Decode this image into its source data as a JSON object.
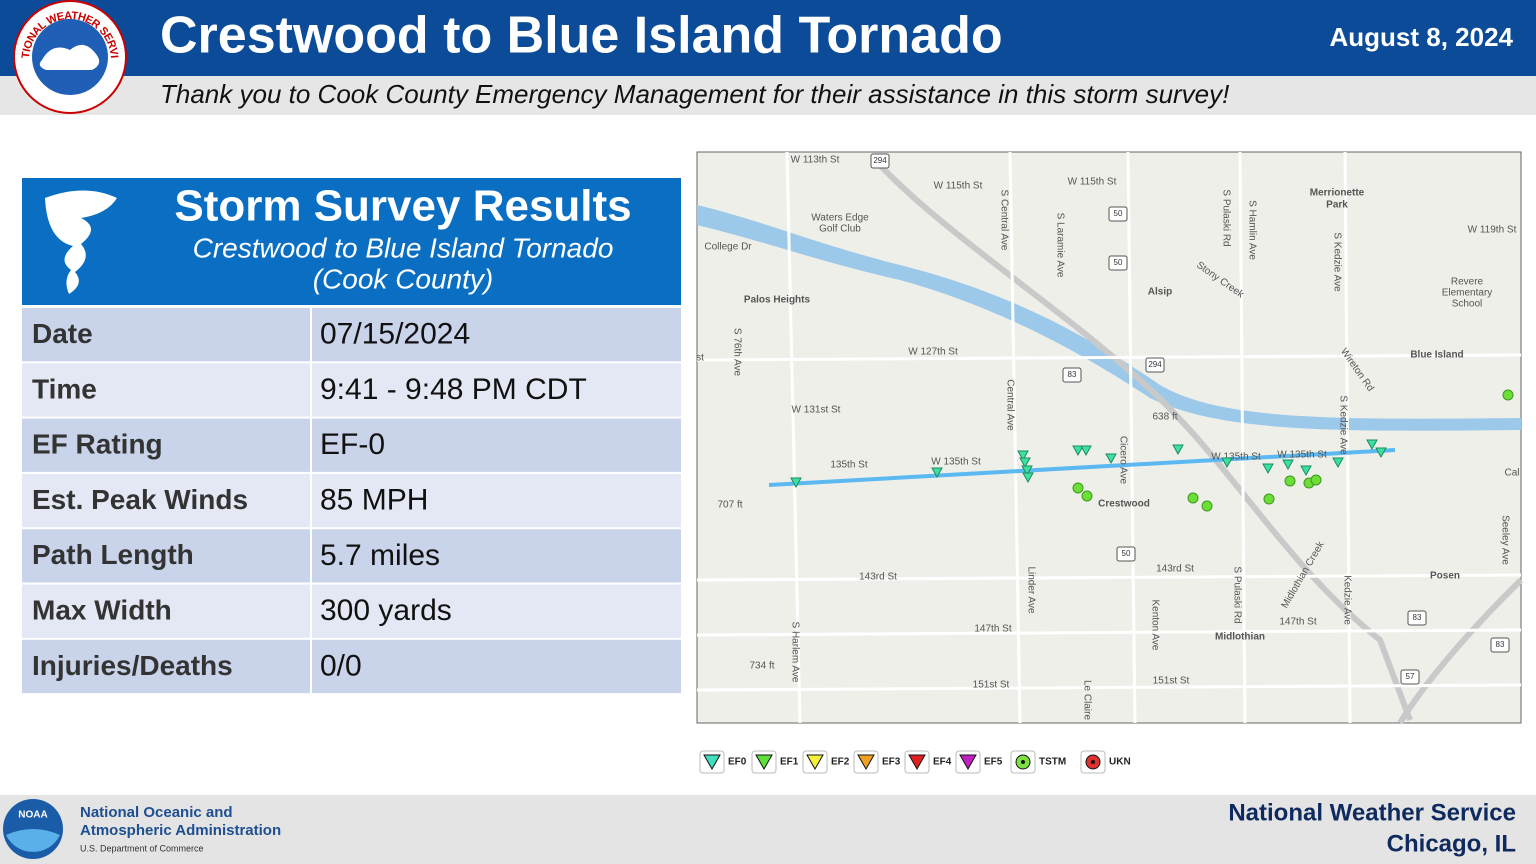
{
  "header": {
    "title": "Crestwood to Blue Island Tornado",
    "date": "August 8, 2024",
    "subtitle": "Thank you to Cook County Emergency Management for their assistance in this storm survey!",
    "logo_ring": "NATIONAL WEATHER SERVICE"
  },
  "panel": {
    "title": "Storm Survey Results",
    "subtitle_1": "Crestwood to Blue Island Tornado",
    "subtitle_2": "(Cook County)"
  },
  "table": {
    "rows": [
      [
        "Date",
        "07/15/2024"
      ],
      [
        "Time",
        "9:41 - 9:48 PM CDT"
      ],
      [
        "EF Rating",
        "EF-0"
      ],
      [
        "Est. Peak Winds",
        "85 MPH"
      ],
      [
        "Path Length",
        "5.7 miles"
      ],
      [
        "Max Width",
        "300 yards"
      ],
      [
        "Injuries/Deaths",
        "0/0"
      ]
    ]
  },
  "map": {
    "labels": [
      "W 113th St",
      "W 115th St",
      "W 115th St",
      "S Central Ave",
      "S Laramie Ave",
      "S Pulaski Rd",
      "S Hamlin Ave",
      "Merrionette",
      "Park",
      "W 119th St",
      "Waters Edge",
      "Golf Club",
      "College Dr",
      "S Kedzie Ave",
      "Stony Creek",
      "Palos Heights",
      "Alsip",
      "Revere",
      "Elementary",
      "School",
      "S 76th Ave",
      "W 127th St",
      "Blue Island",
      "Central Ave",
      "Wireton Rd",
      "W 131st St",
      "638 ft",
      "S Kedzie Ave",
      "135th St",
      "W 135th St",
      "W 135th St",
      "W 135th St",
      "Cicero Ave",
      "707 ft",
      "Crestwood",
      "143rd St",
      "143rd St",
      "Linder Ave",
      "Kenton Ave",
      "S Pulaski Rd",
      "Midlothian Creek",
      "Kedzie Ave",
      "Posen",
      "147th St",
      "147th St",
      "Midlothian",
      "S Harlem Ave",
      "734 ft",
      "151st St",
      "Le Claire",
      "151st St",
      "Seeley Ave",
      "Cal",
      "st"
    ],
    "shields": [
      "294",
      "50",
      "50",
      "294",
      "83",
      "50",
      "83",
      "83",
      "57"
    ]
  },
  "legend": [
    "EF0",
    "EF1",
    "EF2",
    "EF3",
    "EF4",
    "EF5",
    "TSTM",
    "UKN"
  ],
  "footer": {
    "agency_1": "National Oceanic and",
    "agency_2": "Atmospheric Administration",
    "department": "U.S. Department of Commerce",
    "noaa": "NOAA",
    "office_1": "National Weather Service",
    "office_2": "Chicago, IL"
  }
}
